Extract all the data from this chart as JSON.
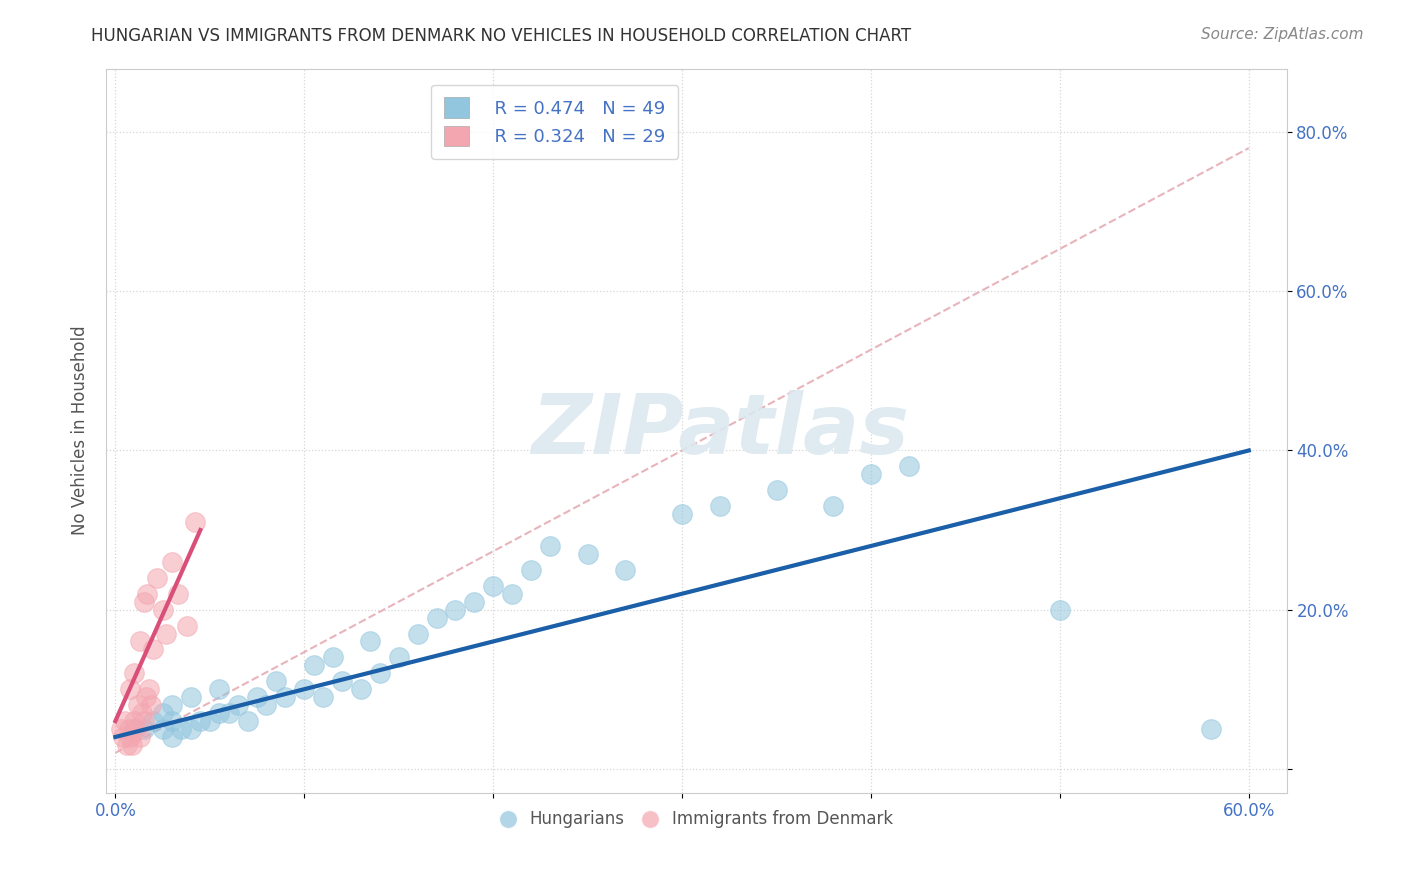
{
  "title": "HUNGARIAN VS IMMIGRANTS FROM DENMARK NO VEHICLES IN HOUSEHOLD CORRELATION CHART",
  "source": "Source: ZipAtlas.com",
  "ylabel": "No Vehicles in Household",
  "xlabel": "",
  "xlim": [
    -0.005,
    0.62
  ],
  "ylim": [
    -0.03,
    0.88
  ],
  "xticks": [
    0.0,
    0.1,
    0.2,
    0.3,
    0.4,
    0.5,
    0.6
  ],
  "xtick_labels": [
    "0.0%",
    "",
    "",
    "",
    "",
    "",
    "60.0%"
  ],
  "yticks": [
    0.0,
    0.2,
    0.4,
    0.6,
    0.8
  ],
  "ytick_labels": [
    "",
    "20.0%",
    "40.0%",
    "60.0%",
    "80.0%"
  ],
  "legend_blue_R": "R = 0.474",
  "legend_blue_N": "N = 49",
  "legend_pink_R": "R = 0.324",
  "legend_pink_N": "N = 29",
  "blue_color": "#92c5de",
  "pink_color": "#f4a6b0",
  "blue_line_color": "#1a5fa8",
  "pink_line_color": "#d94f7a",
  "trend_line_color": "#e8b4bc",
  "watermark_color": "#dce8f0",
  "blue_scatter_x": [
    0.01,
    0.015,
    0.02,
    0.025,
    0.025,
    0.03,
    0.03,
    0.03,
    0.035,
    0.04,
    0.04,
    0.045,
    0.05,
    0.055,
    0.055,
    0.06,
    0.065,
    0.07,
    0.075,
    0.08,
    0.085,
    0.09,
    0.1,
    0.105,
    0.11,
    0.115,
    0.12,
    0.13,
    0.135,
    0.14,
    0.15,
    0.16,
    0.17,
    0.18,
    0.19,
    0.2,
    0.21,
    0.22,
    0.23,
    0.25,
    0.27,
    0.3,
    0.32,
    0.35,
    0.38,
    0.4,
    0.42,
    0.5,
    0.58
  ],
  "blue_scatter_y": [
    0.05,
    0.05,
    0.06,
    0.05,
    0.07,
    0.04,
    0.06,
    0.08,
    0.05,
    0.05,
    0.09,
    0.06,
    0.06,
    0.07,
    0.1,
    0.07,
    0.08,
    0.06,
    0.09,
    0.08,
    0.11,
    0.09,
    0.1,
    0.13,
    0.09,
    0.14,
    0.11,
    0.1,
    0.16,
    0.12,
    0.14,
    0.17,
    0.19,
    0.2,
    0.21,
    0.23,
    0.22,
    0.25,
    0.28,
    0.27,
    0.25,
    0.32,
    0.33,
    0.35,
    0.33,
    0.37,
    0.38,
    0.2,
    0.05
  ],
  "pink_scatter_x": [
    0.003,
    0.004,
    0.005,
    0.006,
    0.007,
    0.008,
    0.008,
    0.009,
    0.01,
    0.01,
    0.011,
    0.012,
    0.013,
    0.013,
    0.014,
    0.015,
    0.015,
    0.016,
    0.017,
    0.018,
    0.019,
    0.02,
    0.022,
    0.025,
    0.027,
    0.03,
    0.033,
    0.038,
    0.042
  ],
  "pink_scatter_y": [
    0.05,
    0.04,
    0.06,
    0.03,
    0.05,
    0.04,
    0.1,
    0.03,
    0.06,
    0.12,
    0.05,
    0.08,
    0.04,
    0.16,
    0.07,
    0.06,
    0.21,
    0.09,
    0.22,
    0.1,
    0.08,
    0.15,
    0.24,
    0.2,
    0.17,
    0.26,
    0.22,
    0.18,
    0.31
  ],
  "blue_line_x": [
    0.0,
    0.6
  ],
  "blue_line_y": [
    0.04,
    0.4
  ],
  "pink_line_x": [
    0.0,
    0.045
  ],
  "pink_line_y": [
    0.06,
    0.3
  ],
  "trend_line_x": [
    0.0,
    0.6
  ],
  "trend_line_y": [
    0.02,
    0.78
  ]
}
